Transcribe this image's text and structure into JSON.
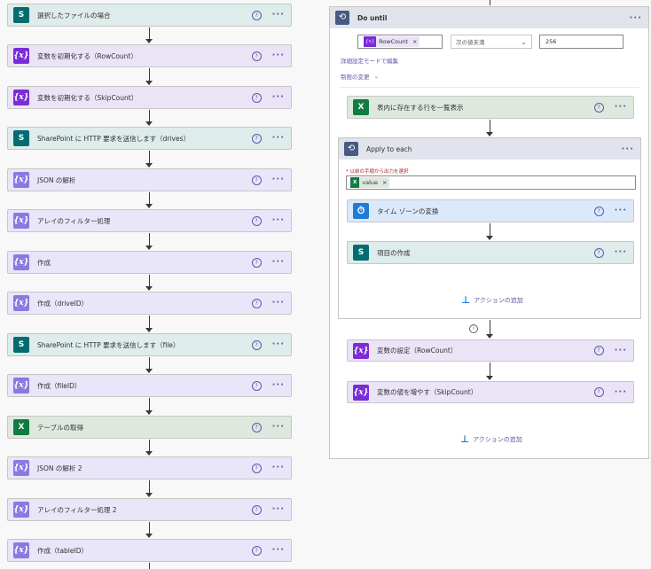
{
  "left_flow": [
    {
      "title": "選択したファイルの場合"
    },
    {
      "title": "変数を初期化する（RowCount）"
    },
    {
      "title": "変数を初期化する（SkipCount）"
    },
    {
      "title": "SharePoint に HTTP 要求を送信します（drives）"
    },
    {
      "title": "JSON の解析"
    },
    {
      "title": "アレイのフィルター処理"
    },
    {
      "title": "作成"
    },
    {
      "title": "作成（driveID）"
    },
    {
      "title": "SharePoint に HTTP 要求を送信します（file）"
    },
    {
      "title": "作成（fileID）"
    },
    {
      "title": "テーブルの取得"
    },
    {
      "title": "JSON の解析 2"
    },
    {
      "title": "アレイのフィルター処理 2"
    },
    {
      "title": "作成（tableID）"
    }
  ],
  "icons": {
    "sharepoint": "S",
    "variable": "{x}",
    "data_op": "{x}",
    "excel": "X",
    "help": "?",
    "more": "···",
    "timezone": "⏱",
    "loop": "⟲",
    "remove": "×",
    "chevron": "⌄",
    "info": "i",
    "add": "⊥"
  },
  "do_until": {
    "title": "Do until",
    "token_label": "RowCount",
    "operator": "次の値未満",
    "value": "256",
    "advanced_mode": "詳細設定モードで編集",
    "limits": "制限の変更",
    "add_action": "アクションの追加"
  },
  "list_rows": {
    "title": "表内に存在する行を一覧表示"
  },
  "apply_each": {
    "title": "Apply to each",
    "field_label": "* 以前の手順から出力を選択",
    "token_label": "value",
    "add_action": "アクションの追加"
  },
  "time_zone": {
    "title": "タイム ゾーンの変換"
  },
  "create_item": {
    "title": "項目の作成"
  },
  "set_variable": {
    "title": "変数の設定（RowCount）"
  },
  "increment": {
    "title": "変数の値を増やす（SkipCount）"
  },
  "colors": {
    "sharepoint": "#036c70",
    "variable": "#7b2bd8",
    "data_op": "#8a7ae0",
    "excel": "#107c41",
    "accent": "#5c5aa8"
  }
}
